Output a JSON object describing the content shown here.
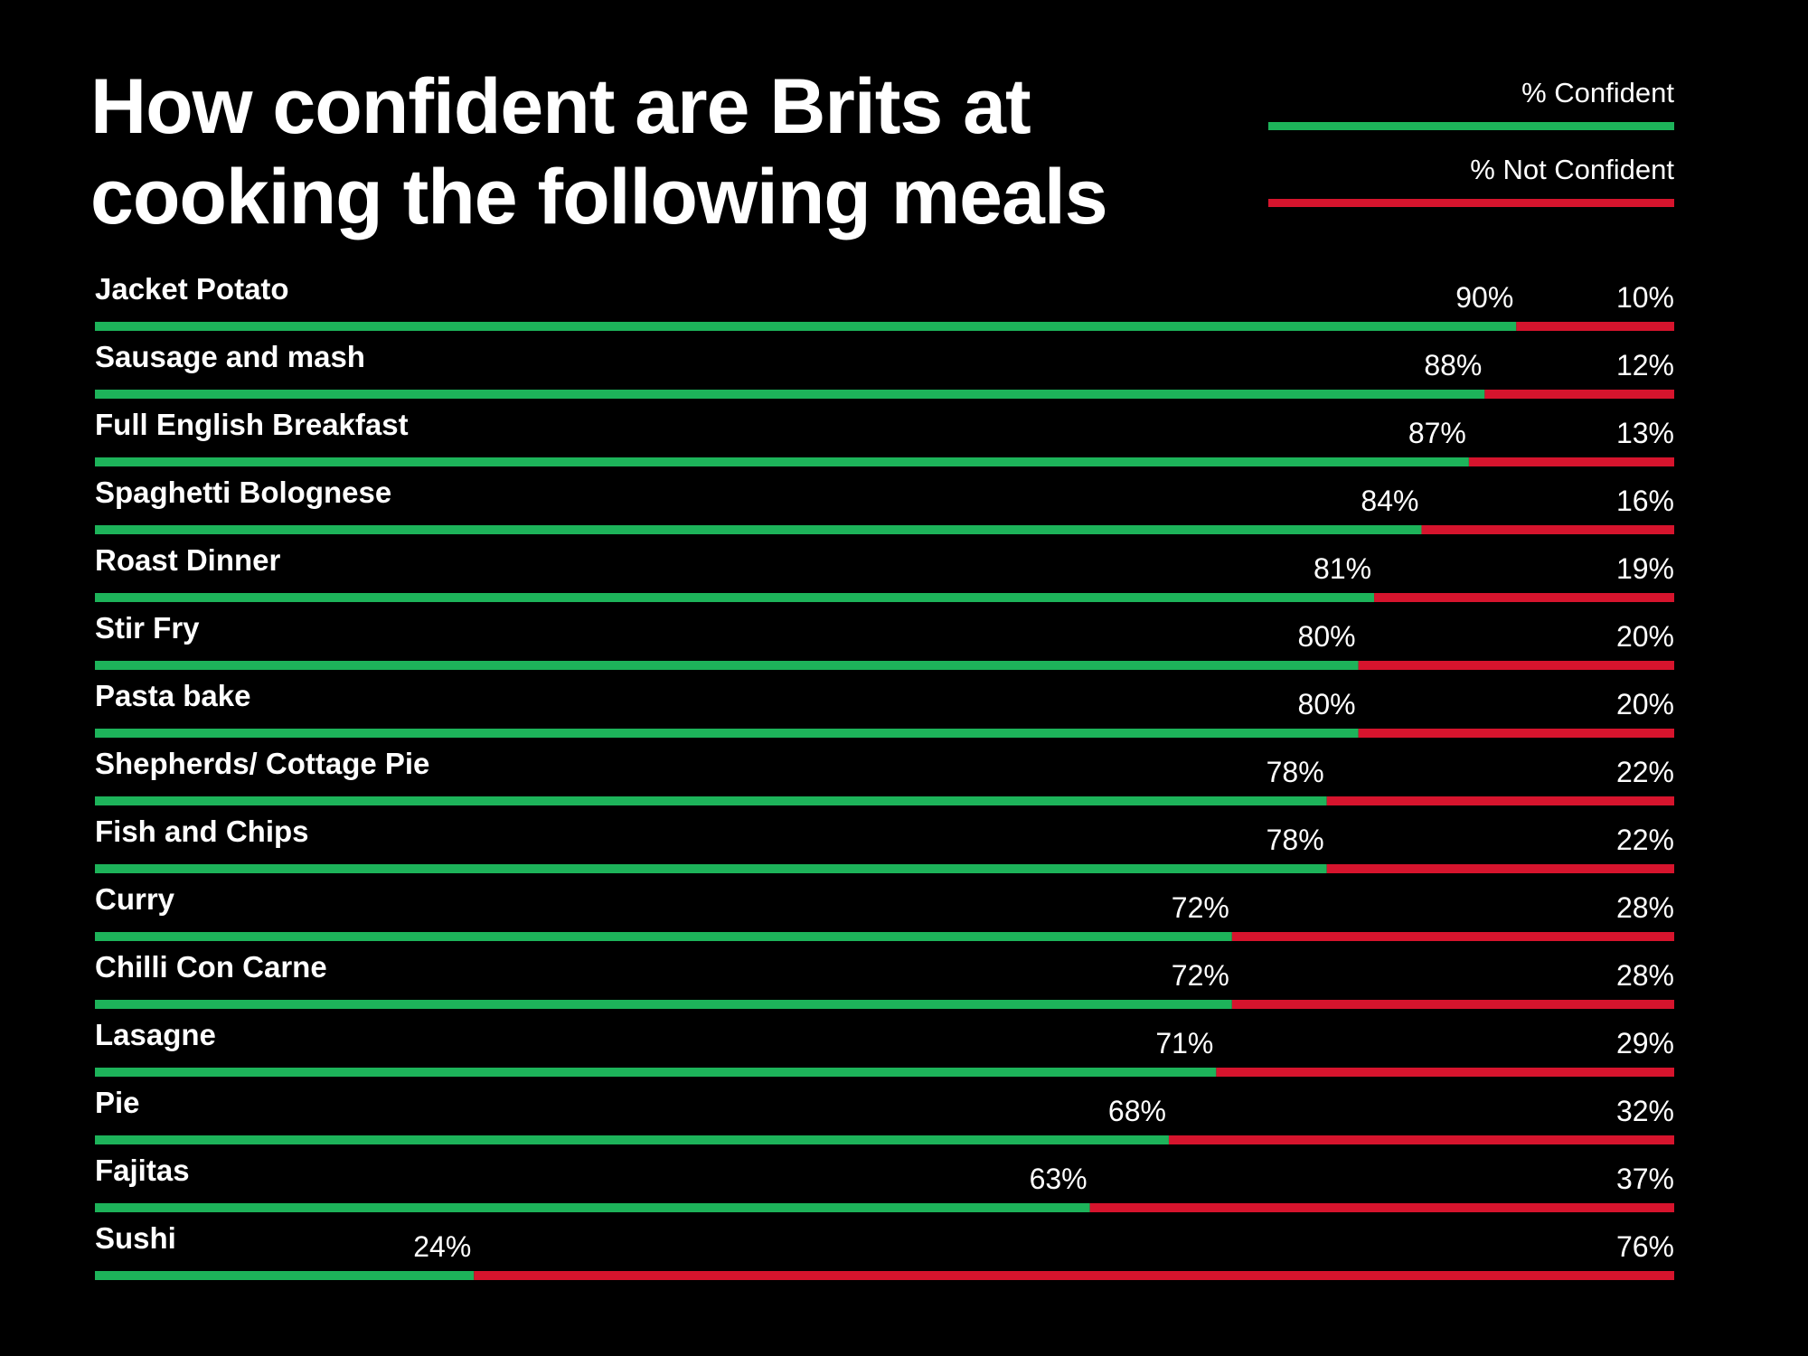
{
  "chart_data": {
    "type": "bar",
    "orientation": "horizontal",
    "stacked": true,
    "title": "How confident are Brits at cooking the following meals",
    "categories": [
      "Jacket Potato",
      "Sausage and mash",
      "Full English Breakfast",
      "Spaghetti Bolognese",
      "Roast Dinner",
      "Stir Fry",
      "Pasta bake",
      "Shepherds/ Cottage Pie",
      "Fish and Chips",
      "Curry",
      "Chilli Con Carne",
      "Lasagne",
      "Pie",
      "Fajitas",
      "Sushi"
    ],
    "series": [
      {
        "name": "% Confident",
        "color": "#1db35a",
        "values": [
          90,
          88,
          87,
          84,
          81,
          80,
          80,
          78,
          78,
          72,
          72,
          71,
          68,
          63,
          24
        ]
      },
      {
        "name": "% Not Confident",
        "color": "#d6142d",
        "values": [
          10,
          12,
          13,
          16,
          19,
          20,
          20,
          22,
          22,
          28,
          28,
          29,
          32,
          37,
          76
        ]
      }
    ],
    "value_suffix": "%",
    "xlim": [
      0,
      100
    ],
    "legend_position": "top-right",
    "background": "#000000",
    "text_color": "#ffffff",
    "grid": false
  }
}
